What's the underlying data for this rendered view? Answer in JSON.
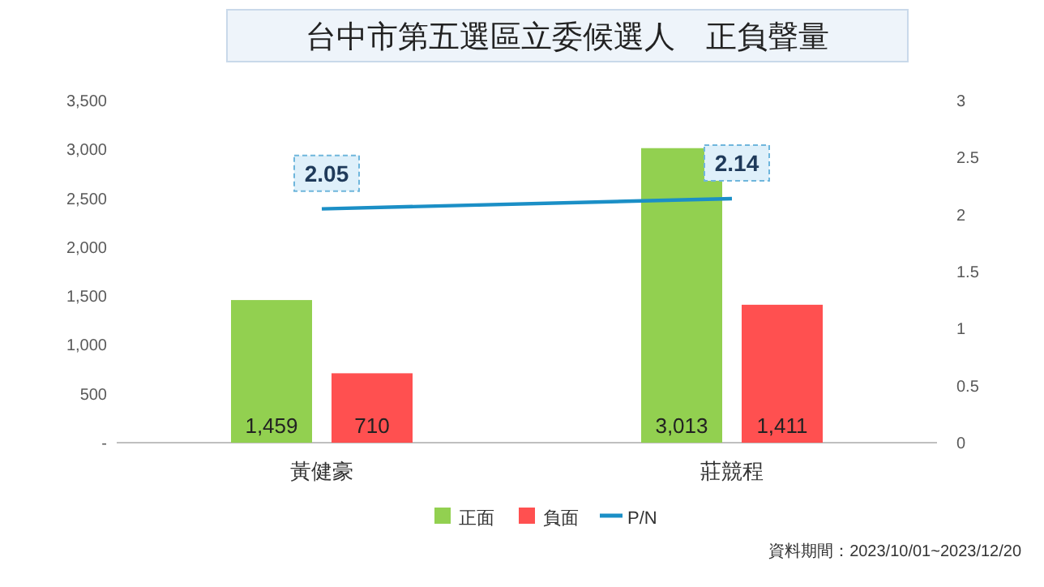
{
  "chart_data": {
    "type": "bar",
    "title": "台中市第五選區立委候選人　正負聲量",
    "categories": [
      "黃健豪",
      "莊競程"
    ],
    "series": [
      {
        "name": "正面",
        "color": "#92d050",
        "values": [
          1459,
          3013
        ],
        "value_labels": [
          "1,459",
          "3,013"
        ]
      },
      {
        "name": "負面",
        "color": "#ff5050",
        "values": [
          710,
          1411
        ],
        "value_labels": [
          "710",
          "1,411"
        ]
      },
      {
        "name": "P/N",
        "type": "line",
        "axis": "y2",
        "color": "#1b8fc6",
        "values": [
          2.05,
          2.14
        ],
        "value_labels": [
          "2.05",
          "2.14"
        ]
      }
    ],
    "ylim": [
      0,
      3500
    ],
    "yticks": [
      {
        "value": 0,
        "label": "-"
      },
      {
        "value": 500,
        "label": "500"
      },
      {
        "value": 1000,
        "label": "1,000"
      },
      {
        "value": 1500,
        "label": "1,500"
      },
      {
        "value": 2000,
        "label": "2,000"
      },
      {
        "value": 2500,
        "label": "2,500"
      },
      {
        "value": 3000,
        "label": "3,000"
      },
      {
        "value": 3500,
        "label": "3,500"
      }
    ],
    "y2lim": [
      0,
      3
    ],
    "y2ticks": [
      0,
      0.5,
      1,
      1.5,
      2,
      2.5,
      3
    ],
    "legend": "bottom",
    "annotations": [
      "資料期間：2023/10/01~2023/12/20"
    ]
  }
}
